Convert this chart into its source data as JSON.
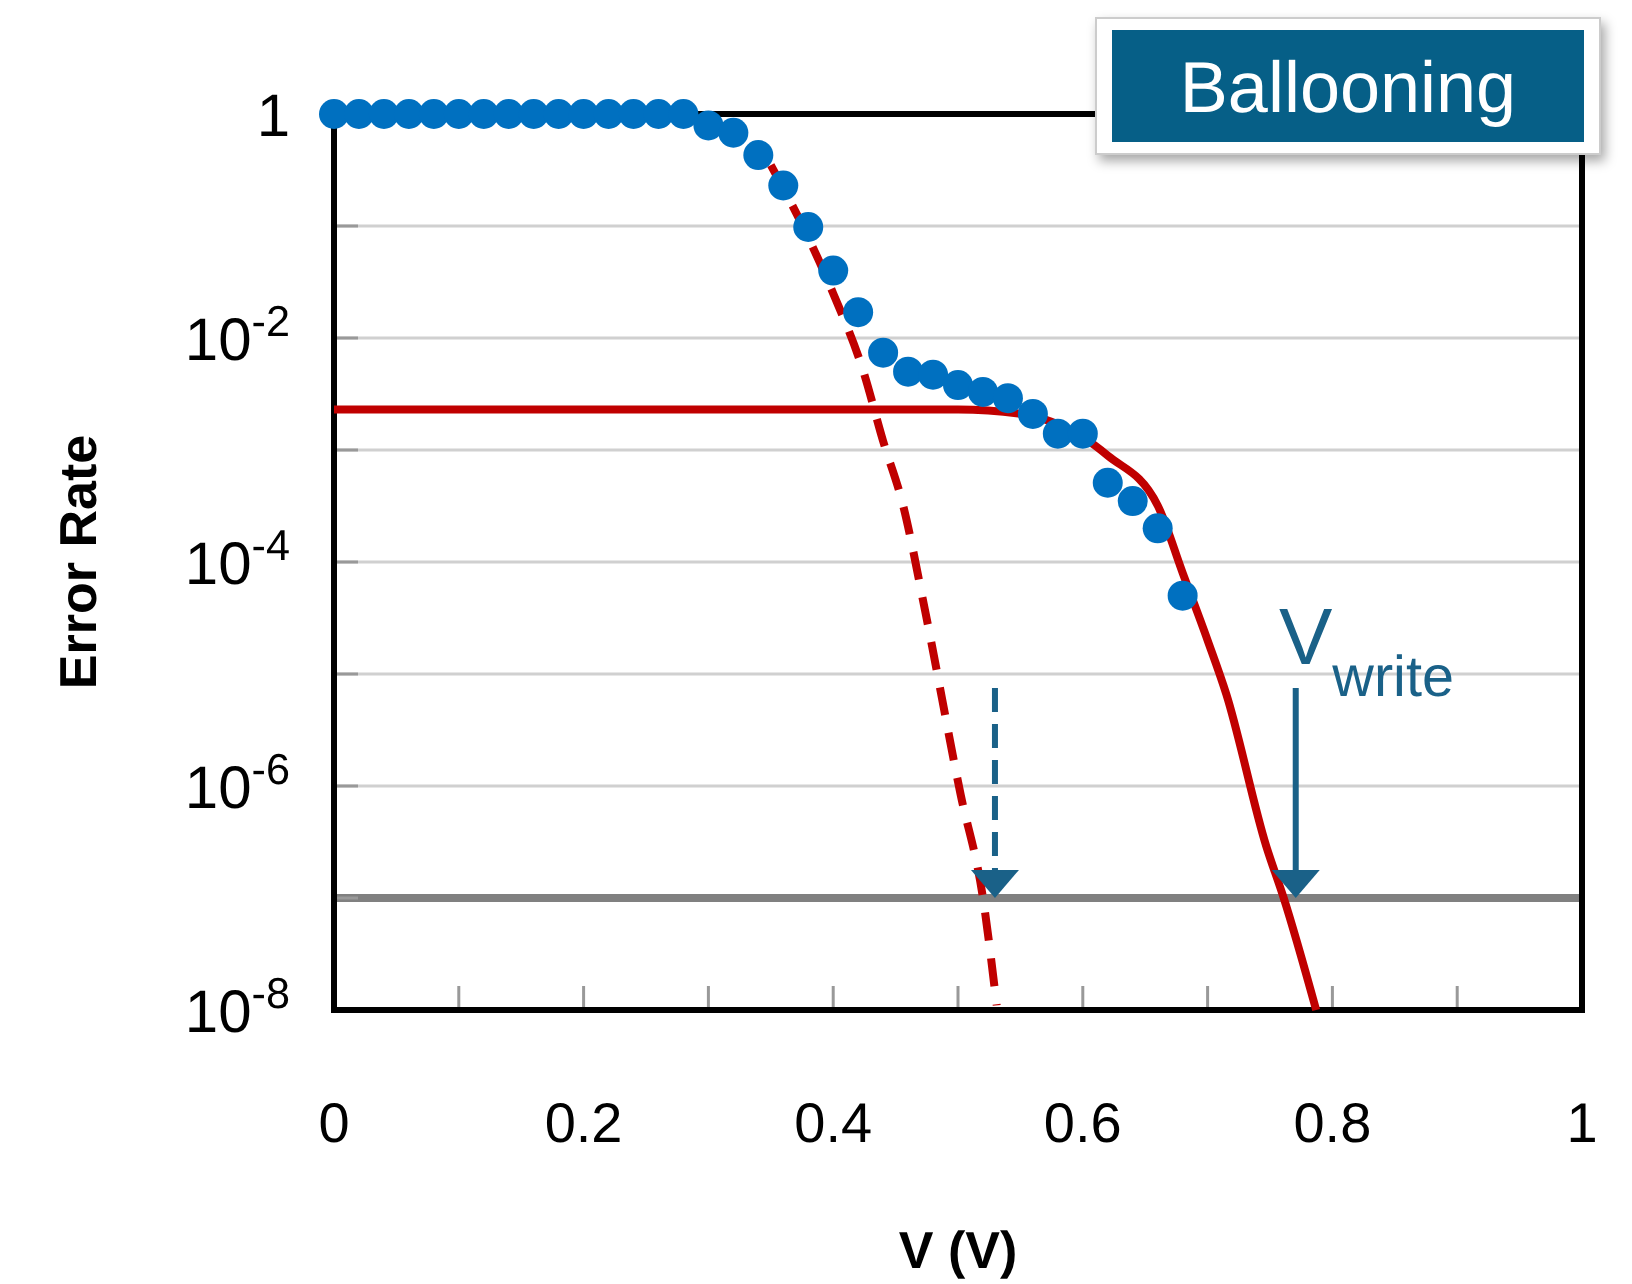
{
  "chart_data": {
    "type": "scatter",
    "xlabel": "V (V)",
    "ylabel": "Error Rate",
    "log": "y",
    "grid": "y",
    "xlim": [
      0,
      1
    ],
    "xticks": [
      0,
      {
        "value": 0.1,
        "label": null
      },
      0.2,
      {
        "value": 0.3,
        "label": null
      },
      0.4,
      {
        "value": 0.5,
        "label": null
      },
      0.6,
      {
        "value": 0.7,
        "label": null
      },
      0.8,
      {
        "value": 0.9,
        "label": null
      },
      1
    ],
    "ylim": [
      1e-08,
      1
    ],
    "yticks": [
      {
        "value": 1,
        "label": "1"
      },
      {
        "value": 0.1,
        "label": null
      },
      {
        "value": 0.01,
        "label": "10$^{-2}$"
      },
      {
        "value": 0.001,
        "label": null
      },
      {
        "value": 0.0001,
        "label": "10$^{-4}$"
      },
      {
        "value": 1e-05,
        "label": null
      },
      {
        "value": 1e-06,
        "label": "10$^{-6}$"
      },
      {
        "value": 1e-07,
        "label": null
      },
      {
        "value": 1e-08,
        "label": "10$^{-8}$"
      }
    ],
    "series": [
      {
        "type": "line",
        "color": "#c00000",
        "line_style": "solid",
        "x": [
          0,
          0.5,
          0.55,
          0.6,
          0.62,
          0.66,
          0.68,
          0.7,
          0.715,
          0.747,
          0.761,
          0.787
        ],
        "values": [
          0.0023,
          0.0023,
          0.0021,
          0.0013,
          0.00089,
          0.00032,
          8e-05,
          2e-05,
          6.6e-06,
          2.9e-07,
          1e-07,
          1e-08
        ]
      },
      {
        "type": "line",
        "color": "#c00000",
        "line_style": "dashed",
        "x": [
          0.35,
          0.38,
          0.4,
          0.424,
          0.44,
          0.456,
          0.474,
          0.502,
          0.52,
          0.531
        ],
        "values": [
          0.35,
          0.079,
          0.025,
          0.0051,
          0.0012,
          0.00032,
          3.5e-05,
          8.5e-07,
          1e-07,
          1.1e-08
        ]
      },
      {
        "color": "#0070c0",
        "marker": "circle",
        "x": [
          0,
          0.02,
          0.04,
          0.06,
          0.08,
          0.1,
          0.12,
          0.14,
          0.16,
          0.18,
          0.2,
          0.22,
          0.24,
          0.26,
          0.28,
          0.3,
          0.32,
          0.34,
          0.36,
          0.38,
          0.4,
          0.42,
          0.44,
          0.46,
          0.48,
          0.5,
          0.52,
          0.54,
          0.56,
          0.58,
          0.6,
          0.62,
          0.64,
          0.66,
          0.68
        ],
        "values": [
          1,
          1,
          1,
          1,
          1,
          1,
          1,
          1,
          1,
          1,
          1,
          1,
          1,
          1,
          1,
          0.79,
          0.68,
          0.43,
          0.23,
          0.098,
          0.04,
          0.017,
          0.0074,
          0.005,
          0.0047,
          0.0038,
          0.0033,
          0.0029,
          0.0021,
          0.0014,
          0.0014,
          0.00051,
          0.00035,
          0.0002,
          5e-05
        ]
      }
    ],
    "ref_lines": [
      {
        "axis": "y",
        "value": 1e-07,
        "color": "#808080"
      }
    ],
    "annotations": [
      "Ballooning",
      {
        "text": "V$_{write}$",
        "x": 0.77,
        "y": 1e-07
      }
    ]
  }
}
